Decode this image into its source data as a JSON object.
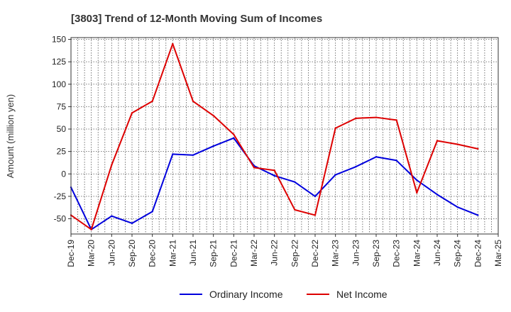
{
  "chart_data": {
    "type": "line",
    "title": "[3803]  Trend of 12-Month Moving Sum of Incomes",
    "xlabel": "",
    "ylabel": "Amount (million yen)",
    "ylim": [
      -67,
      152
    ],
    "yticks": [
      150,
      125,
      100,
      75,
      50,
      25,
      0,
      -25,
      -50
    ],
    "categories": [
      "Dec-19",
      "Mar-20",
      "Jun-20",
      "Sep-20",
      "Dec-20",
      "Mar-21",
      "Jun-21",
      "Sep-21",
      "Dec-21",
      "Mar-22",
      "Jun-22",
      "Sep-22",
      "Dec-22",
      "Mar-23",
      "Jun-23",
      "Sep-23",
      "Dec-23",
      "Mar-24",
      "Jun-24",
      "Sep-24",
      "Dec-24",
      "Mar-25"
    ],
    "grid": true,
    "legend_position": "bottom-center",
    "series": [
      {
        "name": "Ordinary Income",
        "color": "#0000dd",
        "values": [
          -15,
          -62,
          -47,
          -55,
          -42,
          22,
          21,
          31,
          40,
          9,
          -2,
          -9,
          -25,
          -1,
          8,
          19,
          15,
          -7,
          -23,
          -37,
          -46,
          null
        ]
      },
      {
        "name": "Net Income",
        "color": "#dd0000",
        "values": [
          -46,
          -62,
          10,
          68,
          81,
          145,
          81,
          65,
          44,
          7,
          4,
          -40,
          -46,
          51,
          62,
          63,
          60,
          -21,
          37,
          33,
          28,
          null
        ]
      }
    ]
  }
}
